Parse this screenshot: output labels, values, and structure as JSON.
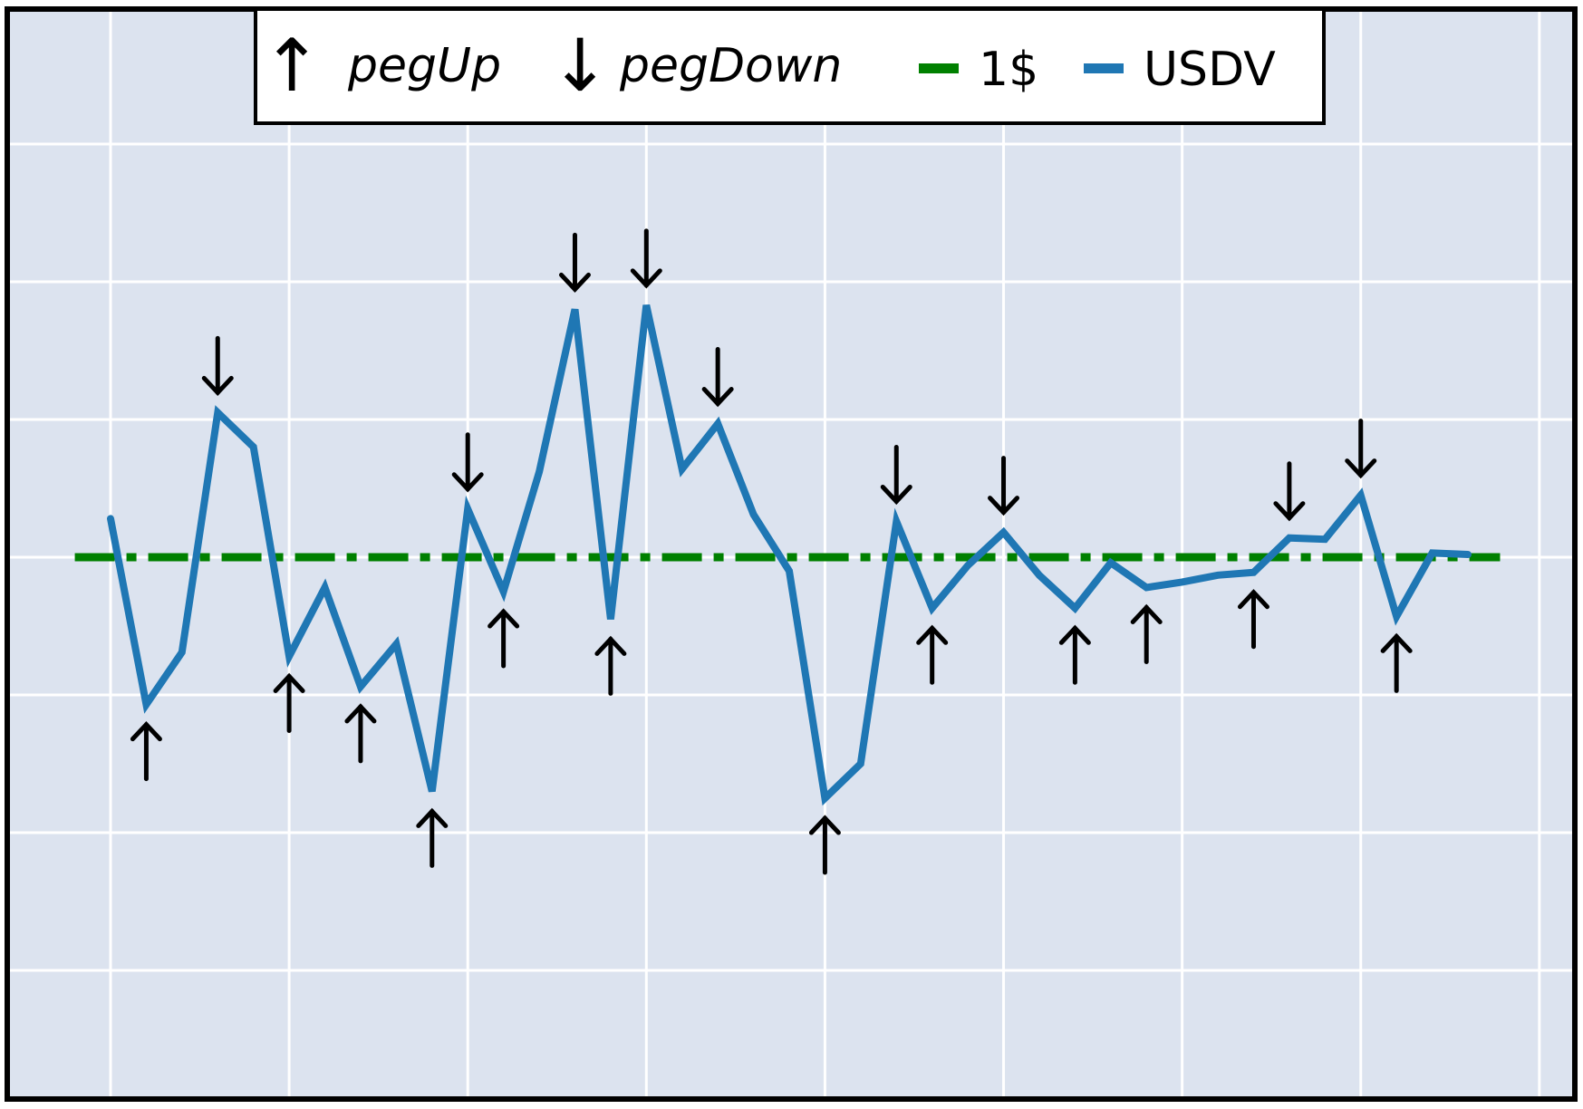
{
  "chart_data": {
    "type": "line",
    "title": "",
    "xlabel": "",
    "ylabel": "",
    "xlim": [
      0,
      40.5
    ],
    "ylim": [
      -3,
      4
    ],
    "grid": true,
    "background_color": "#dce3ef",
    "grid_color": "#ffffff",
    "legend": {
      "placement": "top-center",
      "entries": [
        {
          "symbol": "↑",
          "label": "pegUp",
          "italic": true
        },
        {
          "symbol": "↓",
          "label": "pegDown",
          "italic": true
        },
        {
          "swatch_color": "#008000",
          "label": "1$",
          "italic": false
        },
        {
          "swatch_color": "#1f77b4",
          "label": "USDV",
          "italic": false
        }
      ]
    },
    "reference_line": {
      "name": "1$",
      "y": 0,
      "color": "#008000",
      "style": "dash-dot"
    },
    "series": [
      {
        "name": "USDV",
        "color": "#1f77b4",
        "x": [
          0,
          1,
          2,
          3,
          4,
          5,
          6,
          7,
          8,
          9,
          10,
          11,
          12,
          13,
          14,
          15,
          16,
          17,
          18,
          19,
          20,
          21,
          22,
          23,
          24,
          25,
          26,
          27,
          28,
          29,
          30,
          31,
          32,
          33,
          34,
          35,
          36,
          37,
          38
        ],
        "y": [
          0.28,
          -1.07,
          -0.69,
          1.05,
          0.8,
          -0.72,
          -0.22,
          -0.94,
          -0.63,
          -1.7,
          0.35,
          -0.25,
          0.62,
          1.8,
          -0.45,
          1.83,
          0.64,
          0.97,
          0.31,
          -0.1,
          -1.75,
          -1.5,
          0.26,
          -0.37,
          -0.06,
          0.18,
          -0.13,
          -0.37,
          -0.04,
          -0.22,
          -0.18,
          -0.13,
          -0.11,
          0.14,
          0.13,
          0.45,
          -0.43,
          0.03,
          0.02
        ]
      }
    ],
    "markers": {
      "pegUp_x": [
        1,
        5,
        7,
        9,
        11,
        14,
        20,
        23,
        27,
        29,
        32,
        36
      ],
      "pegDown_x": [
        3,
        10,
        13,
        15,
        17,
        22,
        25,
        33,
        35
      ]
    }
  }
}
